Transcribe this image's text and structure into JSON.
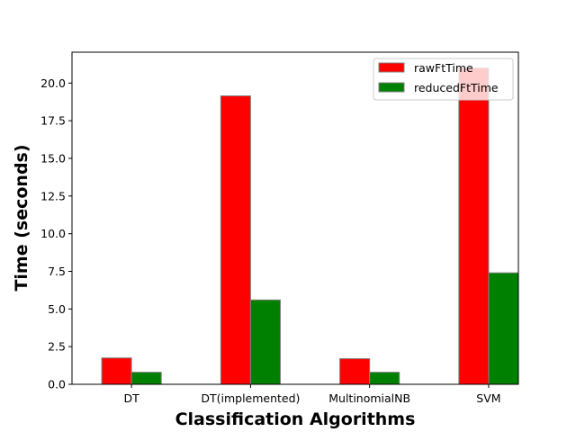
{
  "chart_data": {
    "type": "bar",
    "categories": [
      "DT",
      "DT(implemented)",
      "MultinomialNB",
      "SVM"
    ],
    "series": [
      {
        "name": "rawFtTime",
        "color": "#ff0000",
        "values": [
          1.75,
          19.15,
          1.7,
          21.0
        ]
      },
      {
        "name": "reducedFtTime",
        "color": "#008000",
        "values": [
          0.8,
          5.6,
          0.8,
          7.4
        ]
      }
    ],
    "title": "",
    "xlabel": "Classification Algorithms",
    "ylabel": "Time (seconds)",
    "ylim": [
      0,
      22.05
    ],
    "yticks": [
      "0.0",
      "2.5",
      "5.0",
      "7.5",
      "10.0",
      "12.5",
      "15.0",
      "17.5",
      "20.0"
    ],
    "grid": false,
    "legend": "top-right"
  }
}
